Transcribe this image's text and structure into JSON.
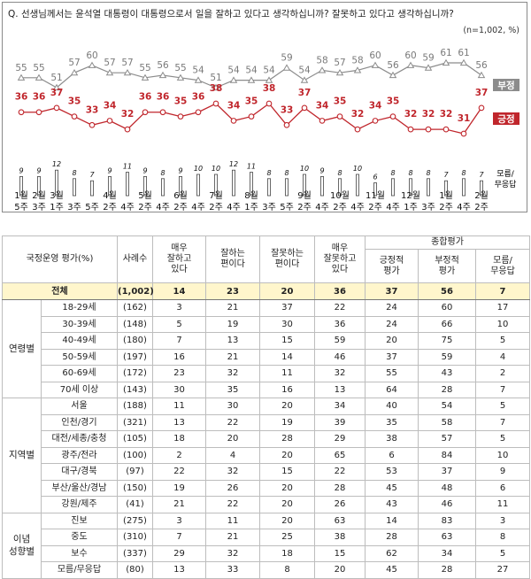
{
  "question": "Q. 선생님께서는 윤석열 대통령이 대통령으로서 일을 잘하고 있다고 생각하십니까? 잘못하고 있다고 생각하십니까?",
  "sample_note": "(n=1,002, %)",
  "chart_data": {
    "type": "line",
    "x": [
      [
        "1월",
        "5주"
      ],
      [
        "2월",
        "3주"
      ],
      [
        "3월",
        "1주"
      ],
      [
        "",
        "3주"
      ],
      [
        "",
        "5주"
      ],
      [
        "4월",
        "2주"
      ],
      [
        "",
        "4주"
      ],
      [
        "5월",
        "2주"
      ],
      [
        "",
        "4주"
      ],
      [
        "6월",
        "2주"
      ],
      [
        "",
        "4주"
      ],
      [
        "7월",
        "2주"
      ],
      [
        "",
        "4주"
      ],
      [
        "8월",
        "1주"
      ],
      [
        "",
        "3주"
      ],
      [
        "",
        "5주"
      ],
      [
        "9월",
        "2주"
      ],
      [
        "",
        "4주"
      ],
      [
        "10월",
        "2주"
      ],
      [
        "",
        "4주"
      ],
      [
        "11월",
        "2주"
      ],
      [
        "",
        "4주"
      ],
      [
        "12월",
        "1주"
      ],
      [
        "",
        "3주"
      ],
      [
        "1월",
        "2주"
      ],
      [
        "",
        "4주"
      ],
      [
        "2월",
        "2주"
      ]
    ],
    "series": [
      {
        "name": "부정",
        "color": "#8c8c8c",
        "values": [
          55,
          55,
          51,
          57,
          60,
          57,
          57,
          55,
          56,
          55,
          54,
          51,
          54,
          54,
          54,
          59,
          54,
          58,
          57,
          58,
          60,
          56,
          60,
          59,
          61,
          61,
          56
        ]
      },
      {
        "name": "긍정",
        "color": "#c0262c",
        "values": [
          36,
          36,
          37,
          35,
          33,
          34,
          32,
          36,
          36,
          35,
          36,
          38,
          34,
          35,
          38,
          33,
          37,
          34,
          35,
          32,
          34,
          35,
          32,
          32,
          32,
          31,
          37
        ]
      },
      {
        "name": "모름/무응답",
        "color": "#ffffff",
        "values": [
          9,
          9,
          12,
          8,
          7,
          9,
          11,
          9,
          8,
          9,
          10,
          10,
          12,
          11,
          8,
          8,
          10,
          9,
          8,
          10,
          6,
          8,
          8,
          8,
          7,
          8,
          7
        ]
      }
    ]
  },
  "table": {
    "headers": {
      "evaluation": "국정운영 평가(%)",
      "cases": "사례수",
      "very_good": "매우\n잘하고\n있다",
      "good": "잘하는\n편이다",
      "bad": "잘못하는\n편이다",
      "very_bad": "매우\n잘못하고\n있다",
      "overall": "종합평가",
      "positive": "긍정적\n평가",
      "negative": "부정적\n평가",
      "unknown": "모름/\n무응답"
    },
    "total": {
      "label": "전체",
      "cases": "(1,002)",
      "values": [
        "14",
        "23",
        "20",
        "36",
        "37",
        "56",
        "7"
      ]
    },
    "groups": [
      {
        "name": "연령별",
        "rows": [
          {
            "label": "18-29세",
            "cases": "(162)",
            "values": [
              "3",
              "21",
              "37",
              "22",
              "24",
              "60",
              "17"
            ]
          },
          {
            "label": "30-39세",
            "cases": "(148)",
            "values": [
              "5",
              "19",
              "30",
              "36",
              "24",
              "66",
              "10"
            ]
          },
          {
            "label": "40-49세",
            "cases": "(180)",
            "values": [
              "7",
              "13",
              "15",
              "59",
              "20",
              "75",
              "5"
            ]
          },
          {
            "label": "50-59세",
            "cases": "(197)",
            "values": [
              "16",
              "21",
              "14",
              "46",
              "37",
              "59",
              "4"
            ]
          },
          {
            "label": "60-69세",
            "cases": "(172)",
            "values": [
              "23",
              "32",
              "11",
              "32",
              "55",
              "43",
              "2"
            ]
          },
          {
            "label": "70세 이상",
            "cases": "(143)",
            "values": [
              "30",
              "35",
              "16",
              "13",
              "64",
              "28",
              "7"
            ]
          }
        ]
      },
      {
        "name": "지역별",
        "rows": [
          {
            "label": "서울",
            "cases": "(188)",
            "values": [
              "11",
              "30",
              "20",
              "34",
              "40",
              "54",
              "5"
            ]
          },
          {
            "label": "인천/경기",
            "cases": "(321)",
            "values": [
              "13",
              "22",
              "19",
              "39",
              "35",
              "58",
              "7"
            ]
          },
          {
            "label": "대전/세종/충청",
            "cases": "(105)",
            "values": [
              "18",
              "20",
              "28",
              "29",
              "38",
              "57",
              "5"
            ]
          },
          {
            "label": "광주/전라",
            "cases": "(100)",
            "values": [
              "2",
              "4",
              "20",
              "65",
              "6",
              "84",
              "10"
            ]
          },
          {
            "label": "대구/경북",
            "cases": "(97)",
            "values": [
              "22",
              "32",
              "15",
              "22",
              "53",
              "37",
              "9"
            ]
          },
          {
            "label": "부산/울산/경남",
            "cases": "(150)",
            "values": [
              "19",
              "26",
              "20",
              "28",
              "45",
              "48",
              "6"
            ]
          },
          {
            "label": "강원/제주",
            "cases": "(41)",
            "values": [
              "21",
              "22",
              "20",
              "26",
              "43",
              "46",
              "11"
            ]
          }
        ]
      },
      {
        "name": "이념\n성향별",
        "rows": [
          {
            "label": "진보",
            "cases": "(275)",
            "values": [
              "3",
              "11",
              "20",
              "63",
              "14",
              "83",
              "3"
            ]
          },
          {
            "label": "중도",
            "cases": "(310)",
            "values": [
              "7",
              "21",
              "25",
              "38",
              "28",
              "63",
              "8"
            ]
          },
          {
            "label": "보수",
            "cases": "(337)",
            "values": [
              "29",
              "32",
              "18",
              "15",
              "62",
              "34",
              "5"
            ]
          },
          {
            "label": "모름/무응답",
            "cases": "(80)",
            "values": [
              "13",
              "33",
              "8",
              "20",
              "45",
              "28",
              "27"
            ]
          }
        ]
      }
    ]
  }
}
